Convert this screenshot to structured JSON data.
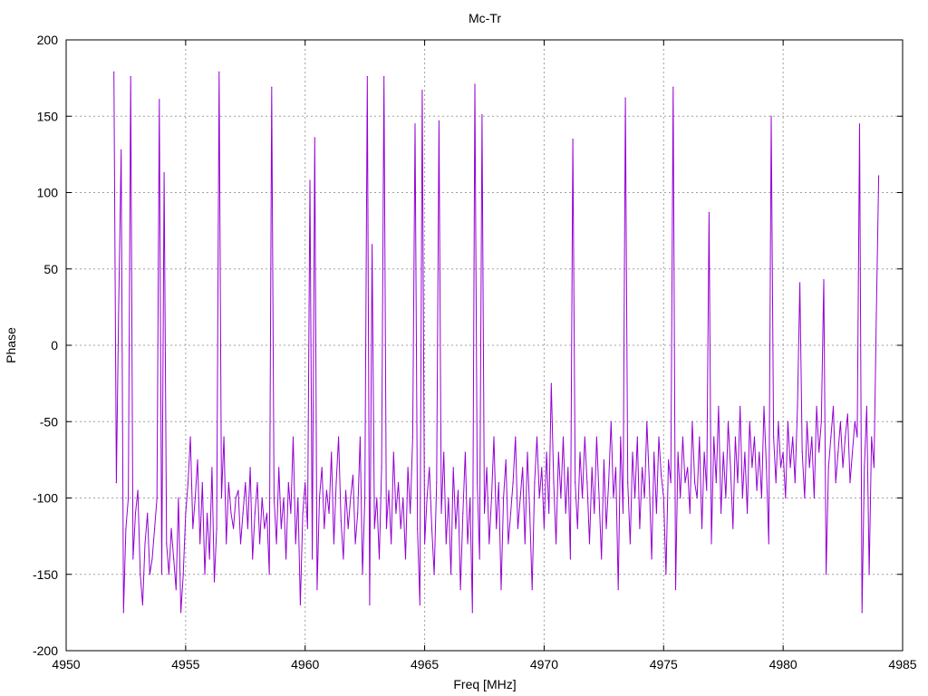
{
  "chart_data": {
    "type": "line",
    "title": "Mc-Tr",
    "xlabel": "Freq [MHz]",
    "ylabel": "Phase",
    "xlim": [
      4950,
      4985
    ],
    "ylim": [
      -200,
      200
    ],
    "xticks": [
      "4950",
      "4955",
      "4960",
      "4965",
      "4970",
      "4975",
      "4980",
      "4985"
    ],
    "yticks": [
      "-200",
      "-150",
      "-100",
      "-50",
      "0",
      "50",
      "100",
      "150",
      "200"
    ],
    "grid": true,
    "series_color": "#9400d3",
    "x_start": 4952.0,
    "x_step": 0.1,
    "series": [
      {
        "name": "Phase",
        "values": [
          179,
          -90,
          27,
          128,
          -175,
          -120,
          -100,
          176,
          -140,
          -110,
          -95,
          -150,
          -170,
          -130,
          -110,
          -150,
          -140,
          -120,
          -100,
          161,
          -150,
          113,
          -130,
          -150,
          -120,
          -140,
          -160,
          -100,
          -175,
          -150,
          -110,
          -90,
          -60,
          -120,
          -100,
          -75,
          -130,
          -90,
          -150,
          -110,
          -140,
          -80,
          -155,
          -120,
          179,
          -100,
          -60,
          -130,
          -90,
          -110,
          -120,
          -100,
          -95,
          -130,
          -110,
          -90,
          -120,
          -80,
          -140,
          -110,
          -90,
          -130,
          -100,
          -120,
          -110,
          -150,
          169,
          -100,
          -130,
          -80,
          -120,
          -100,
          -140,
          -90,
          -110,
          -60,
          -130,
          -100,
          -170,
          -110,
          -90,
          -120,
          108,
          -140,
          136,
          -160,
          -100,
          -80,
          -120,
          -95,
          -110,
          -70,
          -130,
          -90,
          -60,
          -115,
          -140,
          -95,
          -120,
          -100,
          -85,
          -130,
          -110,
          -60,
          -150,
          -100,
          176,
          -170,
          66,
          -120,
          -100,
          -140,
          -80,
          176,
          -120,
          -95,
          -130,
          -70,
          -110,
          -90,
          -120,
          -100,
          -140,
          -80,
          -110,
          -60,
          145,
          -120,
          -170,
          167,
          -130,
          -100,
          -80,
          -120,
          -150,
          -90,
          147,
          -110,
          -70,
          -130,
          -100,
          -150,
          -80,
          -120,
          -95,
          -160,
          -110,
          -70,
          -130,
          -100,
          -175,
          171,
          -90,
          -140,
          151,
          -110,
          -80,
          -130,
          -100,
          -60,
          -120,
          -90,
          -160,
          -100,
          -75,
          -130,
          -110,
          -90,
          -60,
          -120,
          -100,
          -80,
          -130,
          -70,
          -110,
          -160,
          -90,
          -60,
          -100,
          -80,
          -120,
          -70,
          -110,
          -25,
          -90,
          -130,
          -70,
          -100,
          -60,
          -110,
          -80,
          -140,
          135,
          -90,
          -120,
          -70,
          -100,
          -60,
          -90,
          -130,
          -80,
          -110,
          -60,
          -100,
          -140,
          -75,
          -120,
          -90,
          -50,
          -100,
          -80,
          -160,
          -60,
          -110,
          162,
          -90,
          -130,
          -70,
          -100,
          -60,
          -120,
          -80,
          -100,
          -50,
          -90,
          -140,
          -70,
          -110,
          -60,
          -85,
          -100,
          -150,
          -75,
          -90,
          169,
          -160,
          -70,
          -100,
          -60,
          -90,
          -80,
          -110,
          -50,
          -90,
          -100,
          -60,
          -120,
          -70,
          -95,
          87,
          -130,
          -60,
          -90,
          -40,
          -110,
          -70,
          -100,
          -50,
          -80,
          -120,
          -60,
          -90,
          -40,
          -100,
          -70,
          -110,
          -50,
          -80,
          -60,
          -95,
          -70,
          -100,
          -40,
          -80,
          -130,
          150,
          -60,
          -90,
          -50,
          -80,
          -70,
          -100,
          -50,
          -80,
          -60,
          -90,
          -40,
          41,
          -70,
          -100,
          -50,
          -80,
          -60,
          -100,
          -40,
          -70,
          -50,
          43,
          -150,
          -80,
          -60,
          -40,
          -90,
          -70,
          -50,
          -80,
          -60,
          -45,
          -90,
          -70,
          -50,
          -60,
          145,
          -175,
          -80,
          -40,
          -150,
          -60,
          -80,
          20,
          111
        ]
      }
    ]
  }
}
